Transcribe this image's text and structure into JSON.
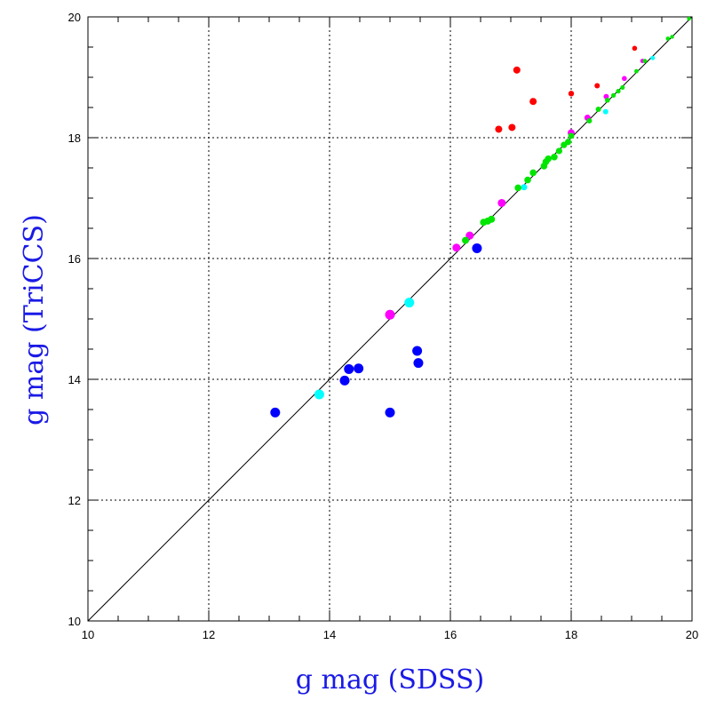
{
  "chart_data": {
    "type": "scatter",
    "title": "",
    "xlabel": "g mag (SDSS)",
    "ylabel": "g mag (TriCCS)",
    "xlim": [
      10,
      20
    ],
    "ylim": [
      10,
      20
    ],
    "xticks": [
      "10",
      "12",
      "14",
      "16",
      "18",
      "20"
    ],
    "yticks": [
      "10",
      "12",
      "14",
      "16",
      "18",
      "20"
    ],
    "grid": "dotted",
    "reference_line": {
      "from": [
        10,
        10
      ],
      "to": [
        20,
        20
      ]
    },
    "series": [
      {
        "color": "#0000ff",
        "points": [
          [
            13.1,
            13.45
          ],
          [
            14.25,
            13.98
          ],
          [
            14.32,
            14.17
          ],
          [
            14.48,
            14.18
          ],
          [
            15.0,
            13.45
          ],
          [
            15.45,
            14.47
          ],
          [
            15.47,
            14.27
          ],
          [
            16.44,
            16.17
          ]
        ],
        "size": 5.5
      },
      {
        "color": "#00ffff",
        "points": [
          [
            13.83,
            13.75
          ],
          [
            15.32,
            15.27
          ],
          [
            17.22,
            17.18
          ],
          [
            18.57,
            18.43
          ],
          [
            19.35,
            19.32
          ]
        ],
        "size": [
          5.5,
          5.5,
          3.5,
          3.0,
          2.5
        ]
      },
      {
        "color": "#ff00ff",
        "points": [
          [
            15.0,
            15.07
          ],
          [
            16.1,
            16.18
          ],
          [
            16.32,
            16.38
          ],
          [
            16.85,
            16.92
          ],
          [
            18.0,
            18.08
          ],
          [
            18.27,
            18.33
          ],
          [
            18.58,
            18.68
          ],
          [
            18.88,
            18.98
          ],
          [
            19.18,
            19.27
          ]
        ],
        "size": [
          5.5,
          4.5,
          4.5,
          4.5,
          4.0,
          3.5,
          3.0,
          2.8,
          2.5
        ]
      },
      {
        "color": "#ff0000",
        "points": [
          [
            16.8,
            18.14
          ],
          [
            17.02,
            18.17
          ],
          [
            17.1,
            19.12
          ],
          [
            17.37,
            18.6
          ],
          [
            18.0,
            18.73
          ],
          [
            18.43,
            18.86
          ],
          [
            19.05,
            19.48
          ]
        ],
        "size": [
          4.0,
          4.0,
          4.0,
          4.0,
          3.2,
          3.0,
          2.8
        ]
      },
      {
        "color": "#00e600",
        "points": [
          [
            16.25,
            16.3
          ],
          [
            16.55,
            16.6
          ],
          [
            16.62,
            16.62
          ],
          [
            16.68,
            16.65
          ],
          [
            17.12,
            17.17
          ],
          [
            17.28,
            17.3
          ],
          [
            17.37,
            17.42
          ],
          [
            17.55,
            17.53
          ],
          [
            17.58,
            17.6
          ],
          [
            17.62,
            17.65
          ],
          [
            17.72,
            17.68
          ],
          [
            17.8,
            17.78
          ],
          [
            17.88,
            17.88
          ],
          [
            17.95,
            17.93
          ],
          [
            18.0,
            18.03
          ],
          [
            18.3,
            18.28
          ],
          [
            18.45,
            18.47
          ],
          [
            18.6,
            18.62
          ],
          [
            18.7,
            18.7
          ],
          [
            18.78,
            18.77
          ],
          [
            18.85,
            18.83
          ],
          [
            19.08,
            19.1
          ],
          [
            19.22,
            19.27
          ],
          [
            19.6,
            19.64
          ],
          [
            19.67,
            19.67
          ],
          [
            19.95,
            19.97
          ]
        ],
        "size": [
          4.0,
          4.0,
          4.0,
          4.0,
          3.8,
          3.8,
          3.8,
          3.8,
          3.8,
          3.8,
          3.8,
          3.6,
          3.6,
          3.6,
          3.4,
          3.0,
          3.0,
          2.8,
          2.6,
          2.6,
          2.5,
          2.4,
          2.4,
          2.3,
          2.2,
          2.2
        ]
      }
    ]
  }
}
